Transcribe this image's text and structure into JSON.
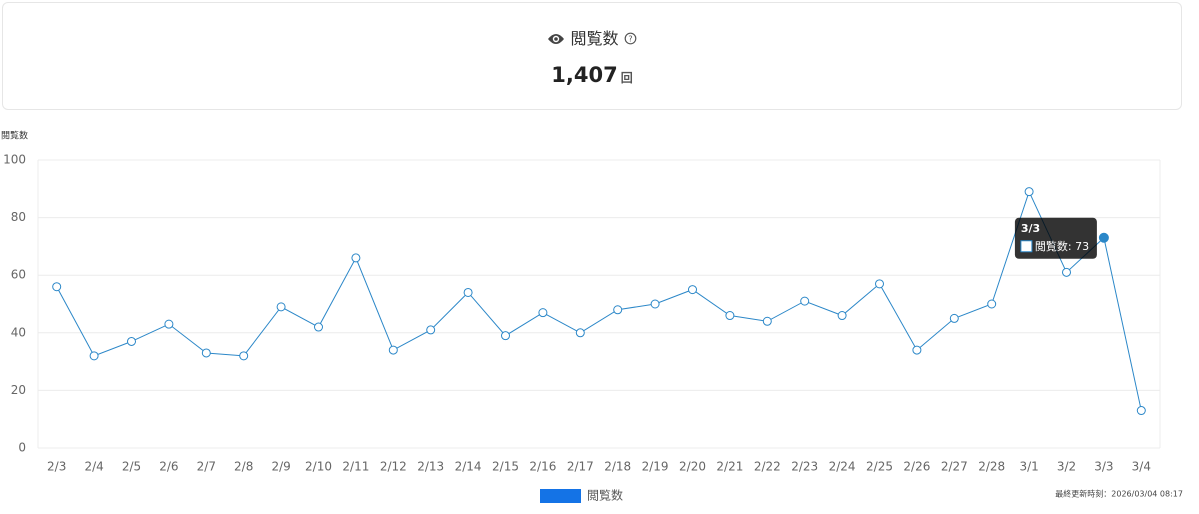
{
  "card": {
    "title": "閲覧数",
    "value": "1,407",
    "unit": "回"
  },
  "chart_data": {
    "type": "line",
    "y_label": "閲覧数",
    "categories": [
      "2/3",
      "2/4",
      "2/5",
      "2/6",
      "2/7",
      "2/8",
      "2/9",
      "2/10",
      "2/11",
      "2/12",
      "2/13",
      "2/14",
      "2/15",
      "2/16",
      "2/17",
      "2/18",
      "2/19",
      "2/20",
      "2/21",
      "2/22",
      "2/23",
      "2/24",
      "2/25",
      "2/26",
      "2/27",
      "2/28",
      "3/1",
      "3/2",
      "3/3",
      "3/4"
    ],
    "series": [
      {
        "name": "閲覧数",
        "color": "#2b87c8",
        "legend_color": "#1473e6",
        "values": [
          56,
          32,
          37,
          43,
          33,
          32,
          49,
          42,
          66,
          34,
          41,
          54,
          39,
          47,
          40,
          48,
          50,
          55,
          46,
          44,
          51,
          46,
          57,
          34,
          45,
          50,
          89,
          61,
          73,
          13
        ]
      }
    ],
    "ylim": [
      0,
      100
    ],
    "yticks": [
      0,
      20,
      40,
      60,
      80,
      100
    ],
    "grid": true,
    "tooltip": {
      "category": "3/3",
      "text": "閲覧数: 73"
    }
  },
  "footer": {
    "updated": "最終更新時刻：2026/03/04 08:17"
  }
}
